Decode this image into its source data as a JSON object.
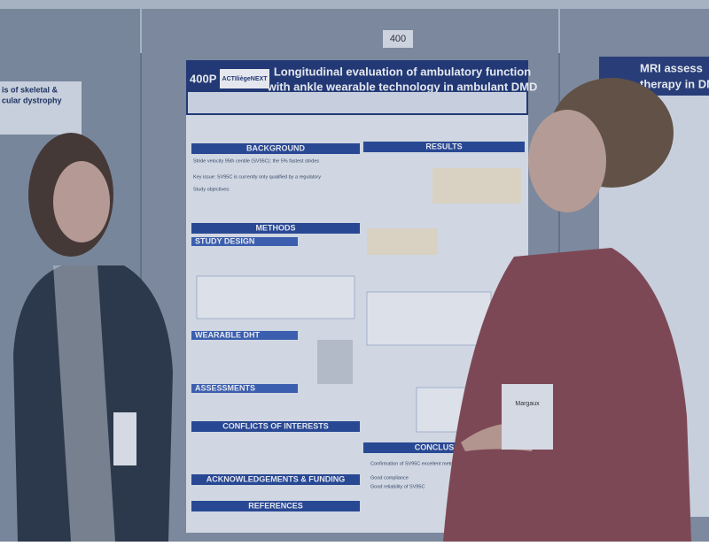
{
  "board_number": "400",
  "main_poster": {
    "id": "400P",
    "logo": "ACTIliègeNEXT",
    "title_lines": [
      "Longitudinal evaluation of ambulatory function",
      "with ankle wearable technology in ambulant DMD"
    ],
    "sections": {
      "background": "BACKGROUND",
      "methods": "METHODS",
      "study_design": "STUDY DESIGN",
      "wearable_dht": "WEARABLE DHT",
      "assessments": "ASSESSMENTS",
      "conflicts": "CONFLICTS OF INTERESTS",
      "acknowledgements": "ACKNOWLEDGEMENTS & FUNDING",
      "references": "REFERENCES",
      "results": "RESULTS",
      "conclusions": "CONCLUSIONS"
    },
    "background_lines": [
      "Stride velocity 95th centile (SV95C): the 5% fastest strides",
      "Key issue: SV95C is currently only qualified by a regulatory",
      "Study objectives:"
    ],
    "conclusions_lines": [
      "Confirmation of SV95C excellent metric properties",
      "Good compliance",
      "Good reliability of SV95C"
    ]
  },
  "left_poster": {
    "title_lines": [
      "is of skeletal &",
      "cular dystrophy"
    ]
  },
  "right_poster": {
    "title_lines": [
      "MRI assess",
      "therapy in DM"
    ]
  },
  "badge_name": "Margaux"
}
